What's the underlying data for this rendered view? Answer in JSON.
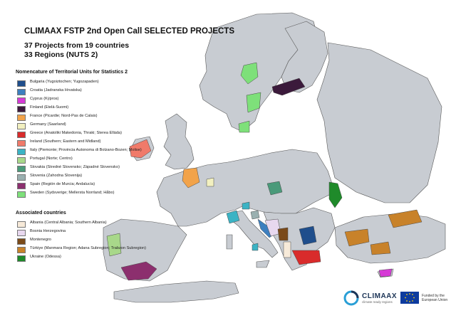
{
  "title": "CLIMAAX FSTP 2nd Open Call SELECTED PROJECTS",
  "subtitle_line1": "37 Projects from 19 countries",
  "subtitle_line2": "33 Regions (NUTS 2)",
  "legend_nuts": {
    "heading": "Nomencature of Territorial Units for Statistics 2",
    "items": [
      {
        "label": "Bulgaria (Yugoiztochen; Yugozapaden)",
        "color": "#1f4e8c"
      },
      {
        "label": "Croatia (Jadranska Hrvatska)",
        "color": "#3d7fbf"
      },
      {
        "label": "Cyprus (Kýpros)",
        "color": "#d63ad6"
      },
      {
        "label": "Finland (Etelä-Suomi)",
        "color": "#3b1a3b"
      },
      {
        "label": "France (Picardie; Nord-Pas de Calais)",
        "color": "#f2a34a"
      },
      {
        "label": "Germany (Saarland)",
        "color": "#f2f0c0"
      },
      {
        "label": "Greece (Anatoliki Makedonia, Thraki; Sterea Ellàda)",
        "color": "#d92b2b"
      },
      {
        "label": "Ireland (Southern; Eastern and Midland)",
        "color": "#f07a6a"
      },
      {
        "label": "Italy (Piemonte; Provincia Autonoma di Bolzano-Bozen; Molise)",
        "color": "#3bb3c4"
      },
      {
        "label": "Portugal (Norte; Centro)",
        "color": "#a8d88a"
      },
      {
        "label": "Slovakia (Stredné Slovensko; Západné Slovensko)",
        "color": "#4a9a7a"
      },
      {
        "label": "Slovenia (Zahodna Slovenija)",
        "color": "#9ab0b0"
      },
      {
        "label": "Spain (Región de Murcia; Andalucía)",
        "color": "#8c2f6e"
      },
      {
        "label": "Sweden (Sydsverige; Mellersta Norrland; Håbo)",
        "color": "#7ee07a"
      }
    ]
  },
  "legend_assoc": {
    "heading": "Associated countries",
    "items": [
      {
        "label": "Albania (Central Albania; Southern Albania)",
        "color": "#f7ead9"
      },
      {
        "label": "Bosnia Herzegovina",
        "color": "#e8d8ef"
      },
      {
        "label": "Montenegro",
        "color": "#7a4a1a"
      },
      {
        "label": "Türkiye (Manmara Region; Adana Subregion; Trabzon Subregion)",
        "color": "#c8822a"
      },
      {
        "label": "Ukraine (Odessa)",
        "color": "#1f8a2a"
      }
    ]
  },
  "logo": {
    "name": "CLIMAAX",
    "tagline": "climate ready regions"
  },
  "eu": {
    "text": "Funded by the European Union"
  },
  "colors": {
    "sea": "#ffffff",
    "land": "#c8ccd2",
    "border": "#5a5a5a"
  }
}
